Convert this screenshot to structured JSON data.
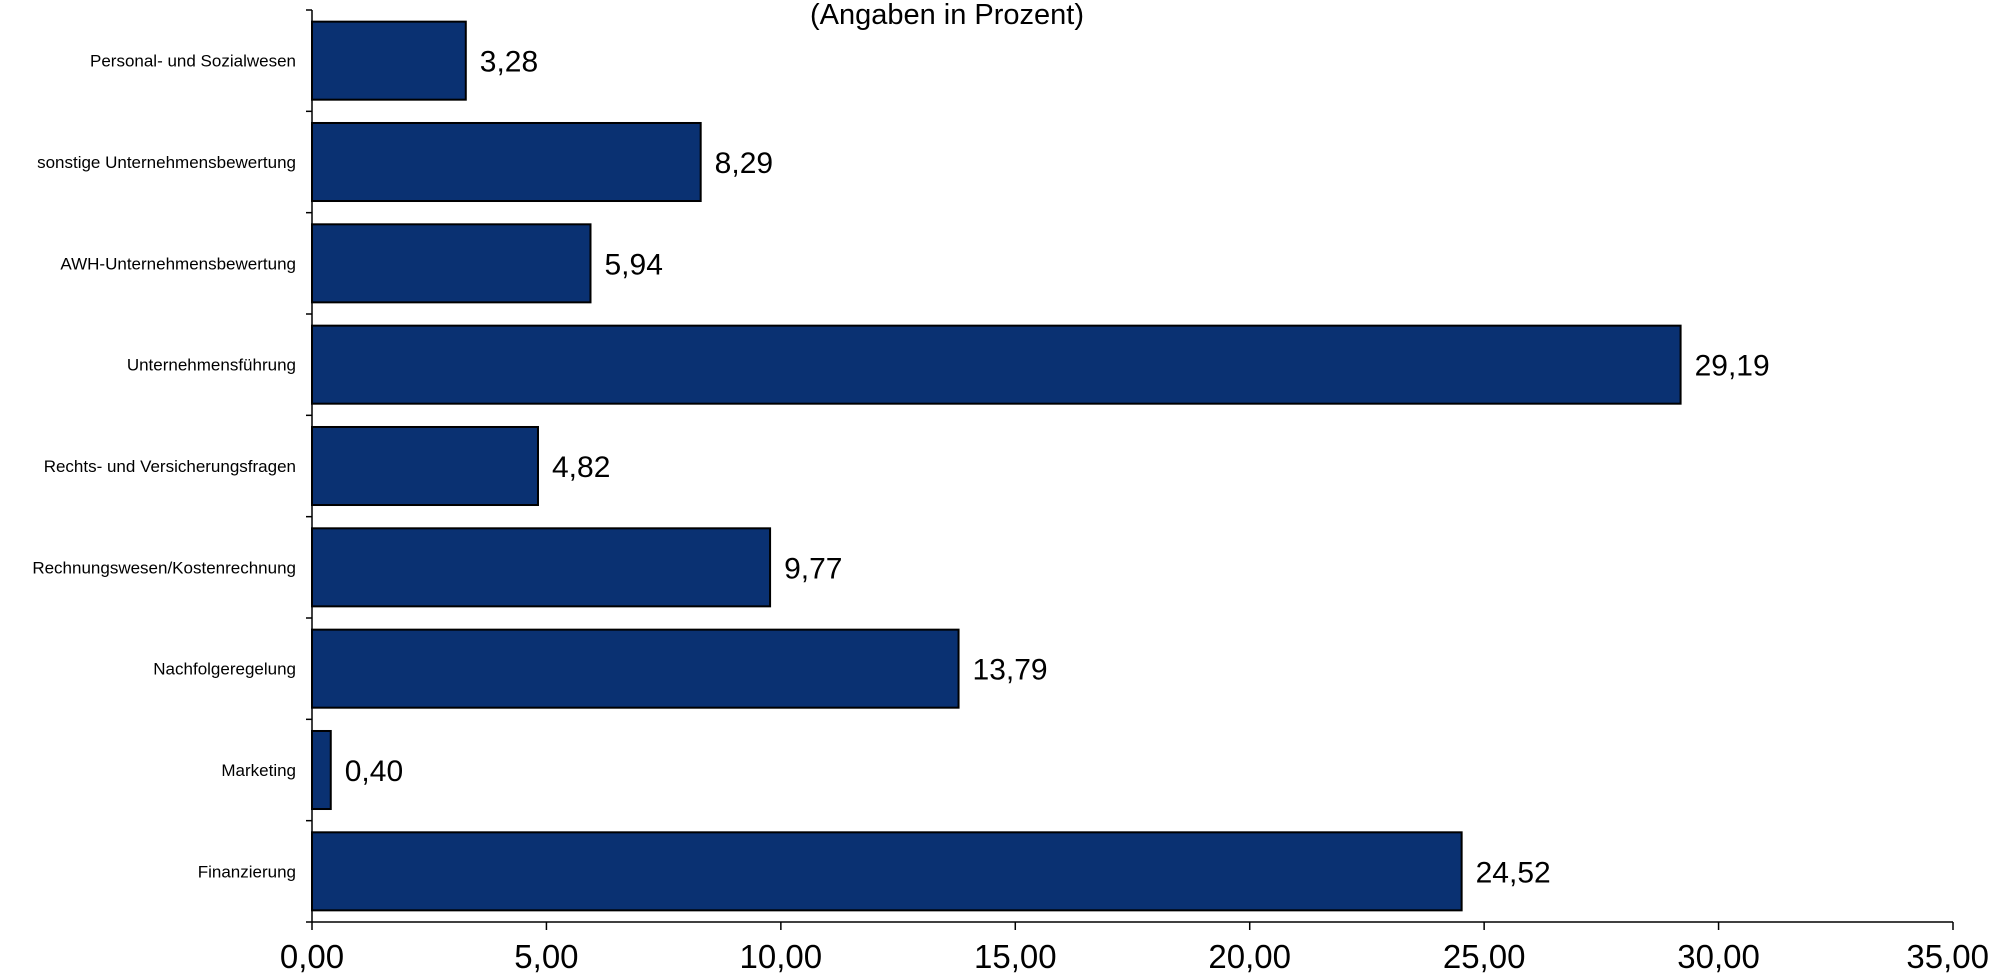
{
  "chart_data": {
    "type": "bar",
    "orientation": "horizontal",
    "title": "",
    "subtitle": "(Angaben in Prozent)",
    "xlabel": "",
    "ylabel": "",
    "categories": [
      "Finanzierung",
      "Marketing",
      "Nachfolgeregelung",
      "Rechnungswesen/Kostenrechnung",
      "Rechts- und Versicherungsfragen",
      "Unternehmensführung",
      "AWH-Unternehmensbewertung",
      "sonstige Unternehmensbewertung",
      "Personal- und Sozialwesen"
    ],
    "values": [
      24.52,
      0.4,
      13.79,
      9.77,
      4.82,
      29.19,
      5.94,
      8.29,
      3.28
    ],
    "value_labels": [
      "24,52",
      "0,40",
      "13,79",
      "9,77",
      "4,82",
      "29,19",
      "5,94",
      "8,29",
      "3,28"
    ],
    "xlim": [
      0,
      35
    ],
    "xticks": [
      0,
      5,
      10,
      15,
      20,
      25,
      30,
      35
    ],
    "xtick_labels": [
      "0,00",
      "5,00",
      "10,00",
      "15,00",
      "20,00",
      "25,00",
      "30,00",
      "35,00"
    ],
    "grid": false,
    "legend": "none",
    "colors": {
      "bar_fill": "#0A3172",
      "bar_stroke": "#000000",
      "axis": "#000000",
      "background": "#FFFFFF"
    }
  }
}
